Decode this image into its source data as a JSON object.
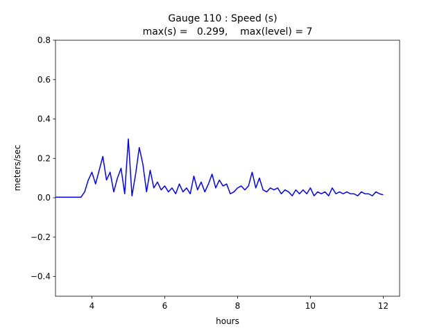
{
  "chart_data": {
    "type": "line",
    "title": [
      "Gauge 110 : Speed (s)",
      "max(s) =   0.299,    max(level) = 7"
    ],
    "x_label": "hours",
    "y_label": "meters/sec",
    "x": [
      3.0,
      3.1,
      3.2,
      3.3,
      3.4,
      3.5,
      3.6,
      3.7,
      3.8,
      3.9,
      4.0,
      4.1,
      4.2,
      4.3,
      4.4,
      4.5,
      4.6,
      4.7,
      4.8,
      4.9,
      5.0,
      5.1,
      5.2,
      5.3,
      5.4,
      5.5,
      5.6,
      5.7,
      5.8,
      5.9,
      6.0,
      6.1,
      6.2,
      6.3,
      6.4,
      6.5,
      6.6,
      6.7,
      6.8,
      6.9,
      7.0,
      7.1,
      7.2,
      7.3,
      7.4,
      7.5,
      7.6,
      7.7,
      7.8,
      7.9,
      8.0,
      8.1,
      8.2,
      8.3,
      8.4,
      8.5,
      8.6,
      8.7,
      8.8,
      8.9,
      9.0,
      9.1,
      9.2,
      9.3,
      9.4,
      9.5,
      9.6,
      9.7,
      9.8,
      9.9,
      10.0,
      10.1,
      10.2,
      10.3,
      10.4,
      10.5,
      10.6,
      10.7,
      10.8,
      10.9,
      11.0,
      11.1,
      11.2,
      11.3,
      11.4,
      11.5,
      11.6,
      11.7,
      11.8,
      11.9,
      12.0
    ],
    "series": [
      {
        "color": "#0000ff",
        "values": [
          0.003,
          0.003,
          0.003,
          0.003,
          0.003,
          0.003,
          0.003,
          0.003,
          0.03,
          0.09,
          0.13,
          0.07,
          0.14,
          0.21,
          0.09,
          0.13,
          0.03,
          0.1,
          0.15,
          0.02,
          0.299,
          0.01,
          0.12,
          0.255,
          0.17,
          0.03,
          0.14,
          0.05,
          0.08,
          0.04,
          0.06,
          0.03,
          0.05,
          0.02,
          0.07,
          0.03,
          0.05,
          0.02,
          0.11,
          0.04,
          0.08,
          0.03,
          0.07,
          0.12,
          0.05,
          0.09,
          0.06,
          0.07,
          0.02,
          0.03,
          0.05,
          0.06,
          0.04,
          0.06,
          0.13,
          0.05,
          0.1,
          0.04,
          0.03,
          0.05,
          0.04,
          0.05,
          0.02,
          0.04,
          0.03,
          0.01,
          0.04,
          0.02,
          0.04,
          0.02,
          0.05,
          0.01,
          0.03,
          0.02,
          0.03,
          0.01,
          0.05,
          0.02,
          0.03,
          0.02,
          0.03,
          0.02,
          0.02,
          0.01,
          0.03,
          0.02,
          0.02,
          0.01,
          0.03,
          0.02,
          0.015
        ]
      }
    ],
    "xlim": [
      3.0,
      12.45
    ],
    "ylim": [
      -0.5,
      0.8
    ],
    "xticks": [
      4,
      6,
      8,
      10,
      12
    ],
    "yticks": [
      {
        "value": -0.4,
        "label": "−0.4"
      },
      {
        "value": -0.2,
        "label": "−0.2"
      },
      {
        "value": 0,
        "label": "0.0"
      },
      0.2,
      0.4,
      0.6,
      0.8
    ]
  }
}
